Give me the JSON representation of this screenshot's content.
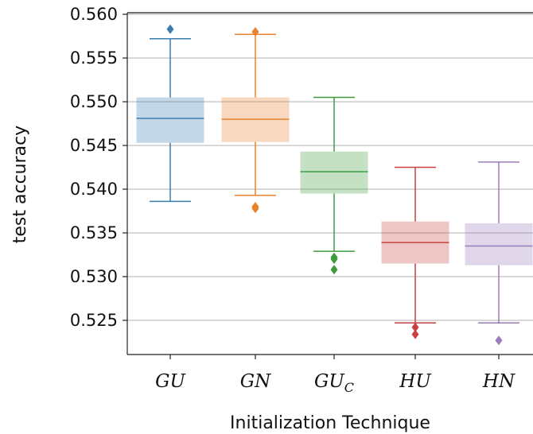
{
  "chart_data": {
    "type": "boxplot",
    "xlabel": "Initialization Technique",
    "ylabel": "test accuracy",
    "ylim": [
      0.521,
      0.56
    ],
    "yticks": [
      "0.525",
      "0.530",
      "0.535",
      "0.540",
      "0.545",
      "0.550",
      "0.555",
      "0.560"
    ],
    "ytick_values": [
      0.525,
      0.53,
      0.535,
      0.54,
      0.545,
      0.55,
      0.555,
      0.56
    ],
    "grid": "horizontal",
    "categories": [
      {
        "label": "GU",
        "sub": "",
        "color": "#3a7cae"
      },
      {
        "label": "GN",
        "sub": "",
        "color": "#e8822b"
      },
      {
        "label": "GU",
        "sub": "C",
        "color": "#3d9a3d"
      },
      {
        "label": "HU",
        "sub": "",
        "color": "#c8413f"
      },
      {
        "label": "HN",
        "sub": "",
        "color": "#9a7bbb"
      }
    ],
    "boxes": [
      {
        "whisker_low": 0.5386,
        "q1": 0.5453,
        "median": 0.5481,
        "q3": 0.5505,
        "whisker_high": 0.5572,
        "outliers": [
          0.5583
        ]
      },
      {
        "whisker_low": 0.5393,
        "q1": 0.5454,
        "median": 0.548,
        "q3": 0.5505,
        "whisker_high": 0.5577,
        "outliers": [
          0.538,
          0.5378,
          0.558
        ]
      },
      {
        "whisker_low": 0.5329,
        "q1": 0.5395,
        "median": 0.542,
        "q3": 0.5443,
        "whisker_high": 0.5505,
        "outliers": [
          0.5322,
          0.532,
          0.5308
        ]
      },
      {
        "whisker_low": 0.5247,
        "q1": 0.5315,
        "median": 0.5339,
        "q3": 0.5363,
        "whisker_high": 0.5425,
        "outliers": [
          0.5242,
          0.5234
        ]
      },
      {
        "whisker_low": 0.5247,
        "q1": 0.5313,
        "median": 0.5335,
        "q3": 0.5361,
        "whisker_high": 0.5431,
        "outliers": [
          0.5227
        ]
      }
    ]
  }
}
